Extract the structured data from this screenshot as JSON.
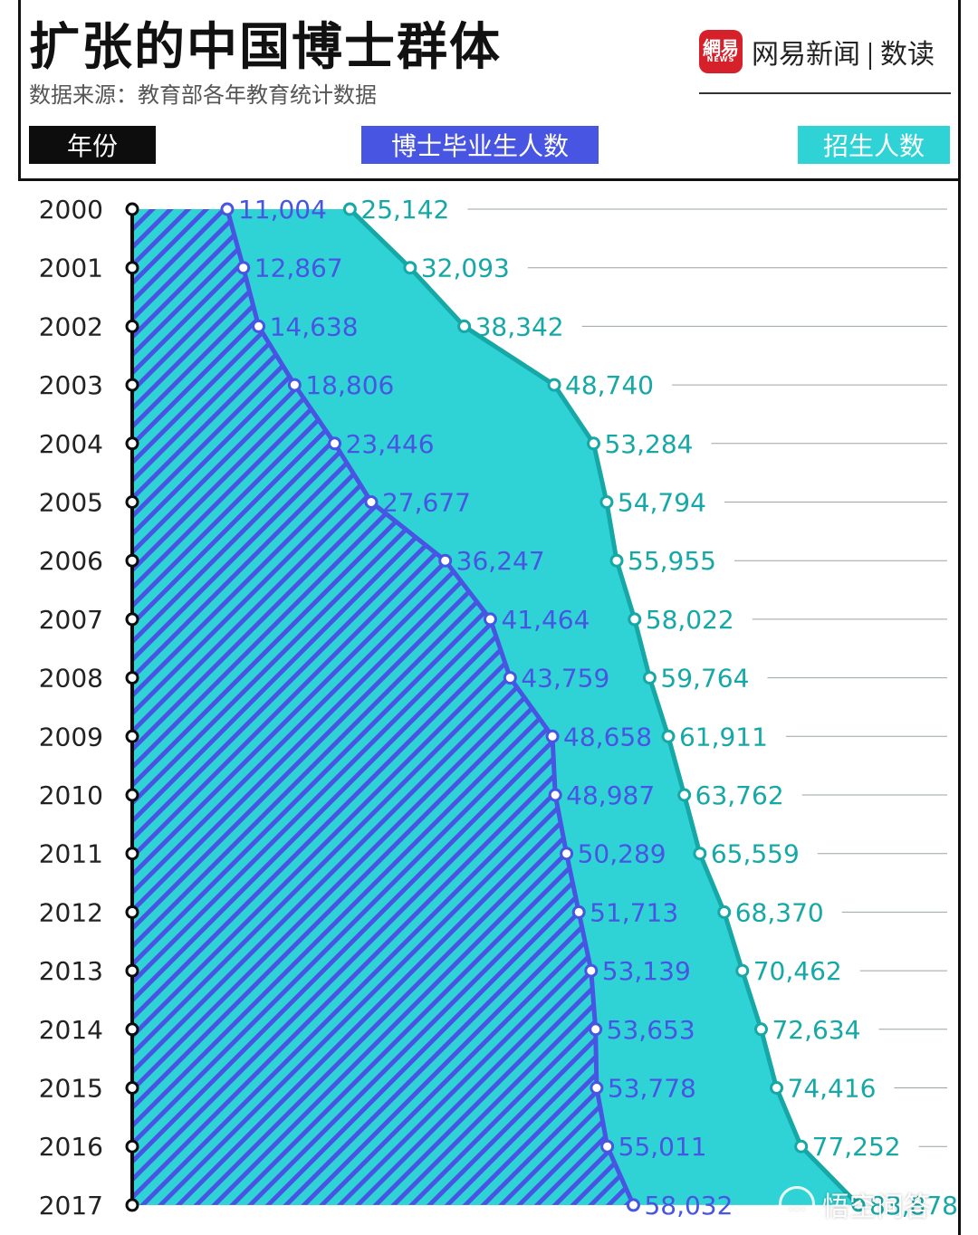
{
  "title": "扩张的中国博士群体",
  "subtitle": "数据来源：教育部各年教育统计数据",
  "brand": {
    "logo_text": "網易",
    "logo_sub": "NEWS",
    "name": "网易新闻",
    "section": "数读"
  },
  "legend": {
    "year": "年份",
    "graduates": "博士毕业生人数",
    "enrollment": "招生人数"
  },
  "watermark": {
    "icon": "chat-bubble-icon",
    "text": "悟空问答"
  },
  "colors": {
    "graduates": "#4855e2",
    "enrollment": "#2fd3d6",
    "enrollment_line": "#16a8a6",
    "year_label": "#0d0d0d"
  },
  "chart_data": {
    "type": "area",
    "orientation": "vertical-years",
    "categories": [
      "2000",
      "2001",
      "2002",
      "2003",
      "2004",
      "2005",
      "2006",
      "2007",
      "2008",
      "2009",
      "2010",
      "2011",
      "2012",
      "2013",
      "2014",
      "2015",
      "2016",
      "2017"
    ],
    "series": [
      {
        "name": "博士毕业生人数",
        "values": [
          11004,
          12867,
          14638,
          18806,
          23446,
          27677,
          36247,
          41464,
          43759,
          48658,
          48987,
          50289,
          51713,
          53139,
          53653,
          53778,
          55011,
          58032
        ],
        "labels": [
          "11,004",
          "12,867",
          "14,638",
          "18,806",
          "23,446",
          "27,677",
          "36,247",
          "41,464",
          "43,759",
          "48,658",
          "48,987",
          "50,289",
          "51,713",
          "53,139",
          "53,653",
          "53,778",
          "55,011",
          "58,032"
        ]
      },
      {
        "name": "招生人数",
        "values": [
          25142,
          32093,
          38342,
          48740,
          53284,
          54794,
          55955,
          58022,
          59764,
          61911,
          63762,
          65559,
          68370,
          70462,
          72634,
          74416,
          77252,
          83878
        ],
        "labels": [
          "25,142",
          "32,093",
          "38,342",
          "48,740",
          "53,284",
          "54,794",
          "55,955",
          "58,022",
          "59,764",
          "61,911",
          "63,762",
          "65,559",
          "68,370",
          "70,462",
          "72,634",
          "74,416",
          "77,252",
          "83,878"
        ]
      }
    ],
    "value_axis_range": [
      0,
      87000
    ],
    "grid": true
  }
}
